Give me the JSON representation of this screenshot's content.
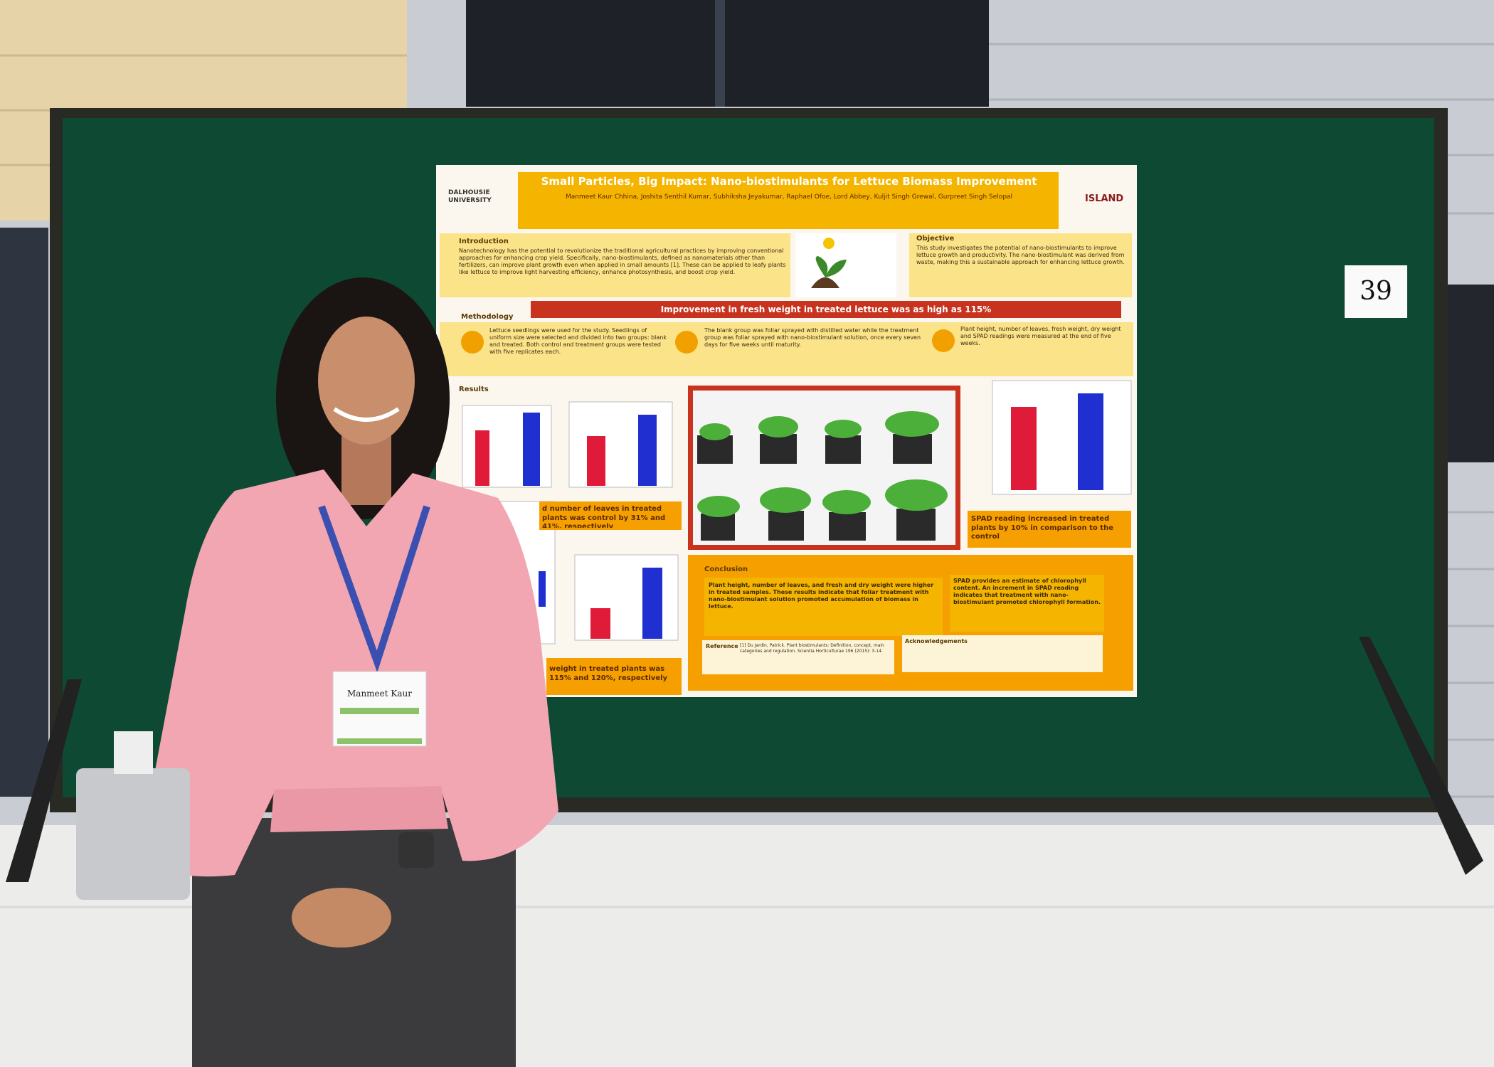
{
  "poster": {
    "title": "Small Particles, Big Impact: Nano-biostimulants for Lettuce Biomass Improvement",
    "authors": "Manmeet Kaur Chhina, Joshita Senthil Kumar, Subhiksha Jeyakumar, Raphael Ofoe, Lord Abbey, Kuljit Singh Grewal, Gurpreet Singh Selopal",
    "logo_left": "DALHOUSIE UNIVERSITY",
    "logo_right": "ISLAND",
    "introduction": {
      "heading": "Introduction",
      "text": "Nanotechnology has the potential to revolutionize the traditional agricultural practices by improving conventional approaches for enhancing crop yield. Specifically, nano-biostimulants, defined as nanomaterials other than fertilizers, can improve plant growth even when applied in small amounts [1]. These can be applied to leafy plants like lettuce to improve light harvesting efficiency, enhance photosynthesis, and boost crop yield."
    },
    "objective": {
      "heading": "Objective",
      "text": "This study investigates the potential of nano-biostimulants to improve lettuce growth and productivity. The nano-biostimulant was derived from waste, making this a sustainable approach for enhancing lettuce growth."
    },
    "highlight": "Improvement in fresh weight in treated lettuce was as high as 115%",
    "methodology": {
      "heading": "Methodology",
      "steps": [
        "Lettuce seedlings were used for the study. Seedlings of uniform size were selected and divided into two groups: blank and treated. Both control and treatment groups were tested with five replicates each.",
        "The blank group was foliar sprayed with distilled water while the treatment group was foliar sprayed with nano-biostimulant solution, once every seven days for five weeks until maturity.",
        "Plant height, number of leaves, fresh weight, dry weight and SPAD readings were measured at the end of five weeks."
      ]
    },
    "results": {
      "heading": "Results",
      "captions": [
        "d number of leaves in treated plants was control by 31% and 41%, respectively",
        "weight in treated plants was 115% and 120%, respectively",
        "SPAD reading increased in treated plants by 10% in comparison to the control"
      ]
    },
    "conclusion": {
      "heading": "Conclusion",
      "texts": [
        "Plant height, number of leaves, and fresh and dry weight were higher in treated samples. These results indicate that foliar treatment with nano-biostimulant solution promoted accumulation of biomass in lettuce.",
        "SPAD provides an estimate of chlorophyll content. An increment in SPAD reading indicates that treatment with nano-biostimulant promoted chlorophyll formation."
      ]
    },
    "reference": {
      "heading": "Reference",
      "text": "[1] Du Jardin, Patrick. Plant biostimulants: Definition, concept, main categories and regulation. Scientia Horticulturae 196 (2015): 3-14."
    },
    "acknowledgements": "Acknowledgements"
  },
  "board_number": "39",
  "badge_name": "Manmeet Kaur"
}
